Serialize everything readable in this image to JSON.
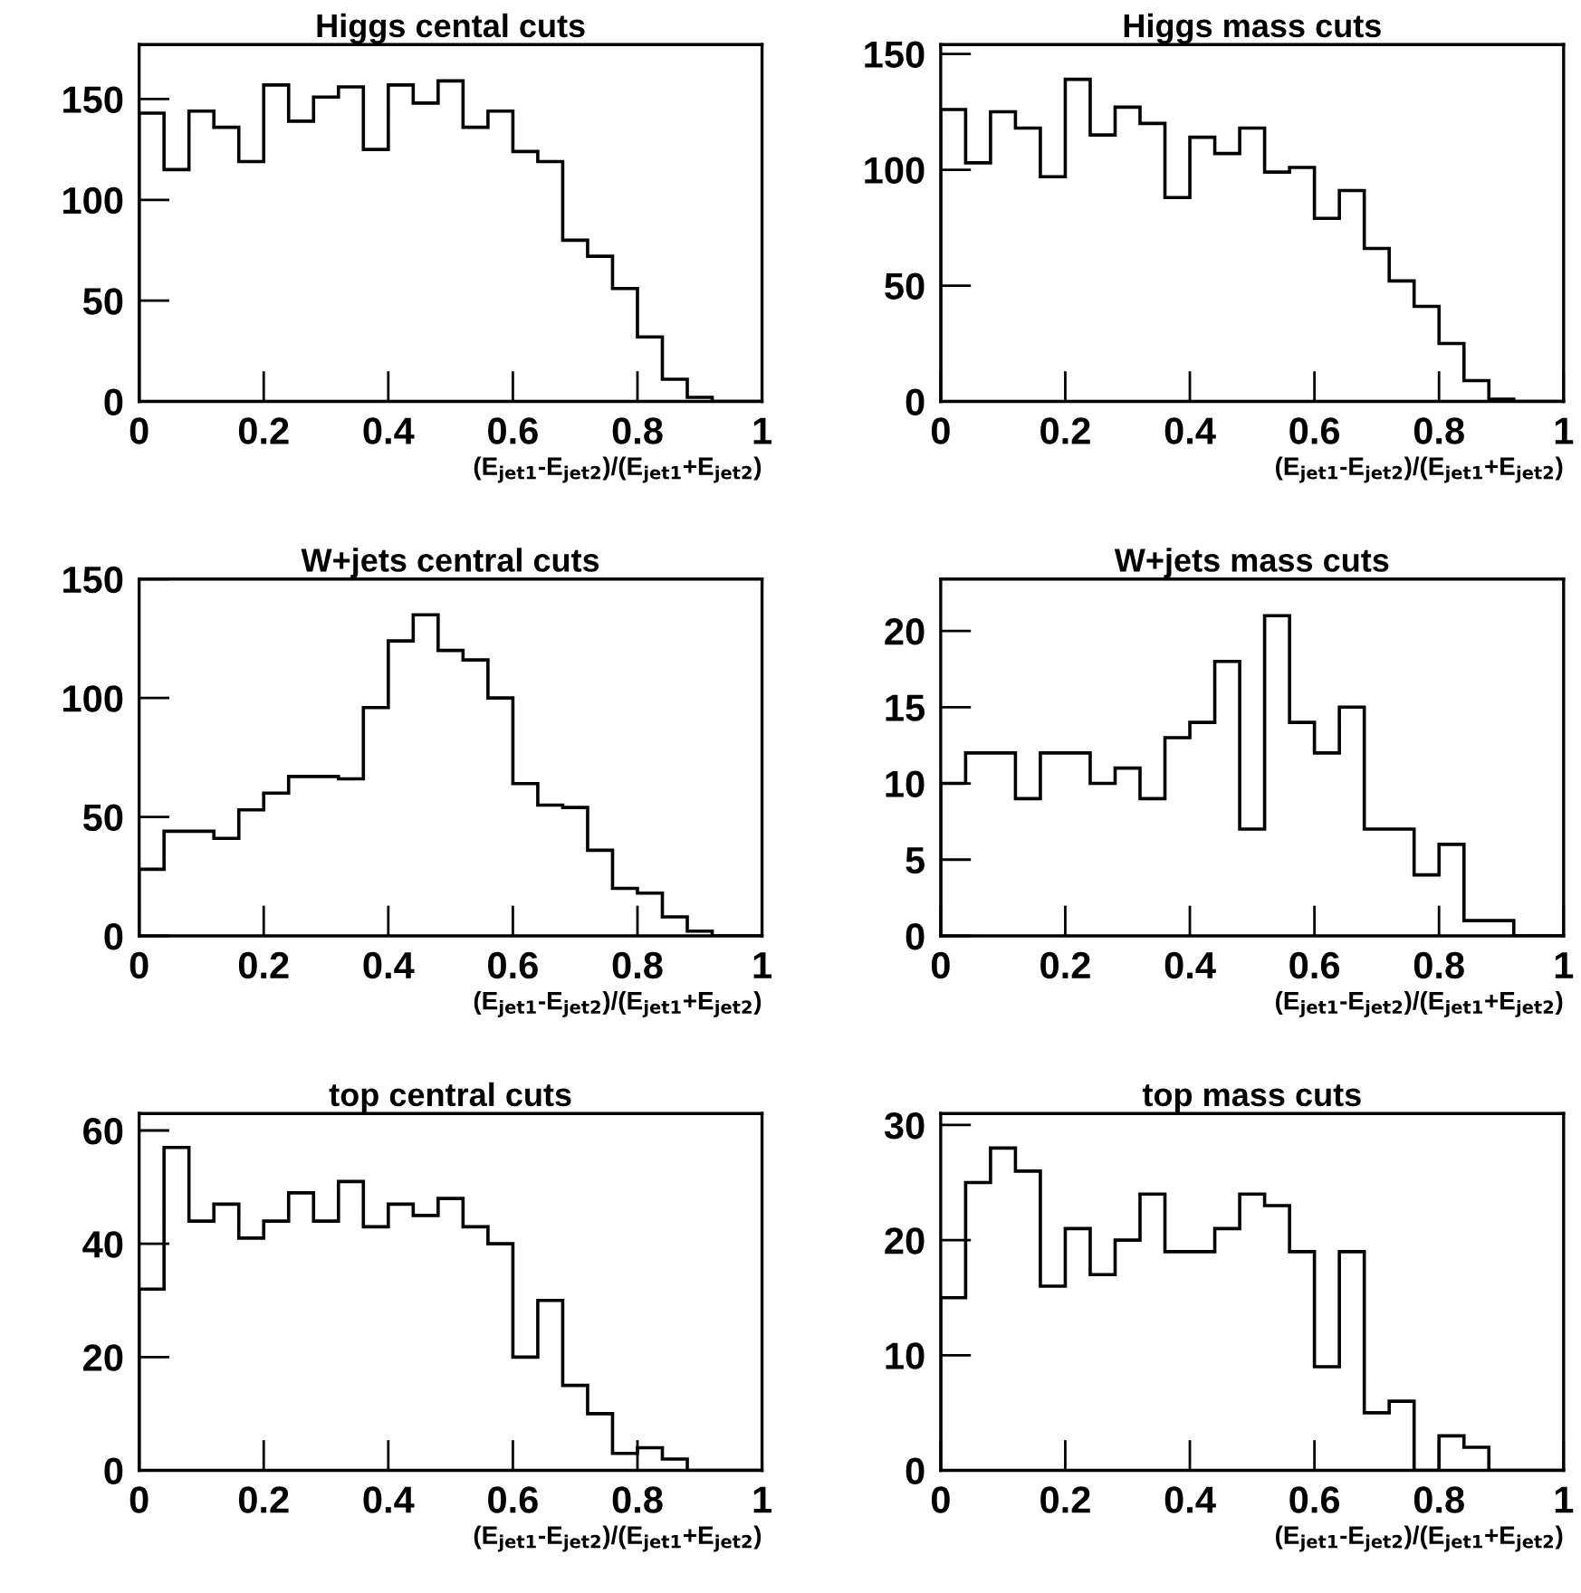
{
  "chart_data": [
    {
      "type": "histogram",
      "title": "Higgs cental cuts",
      "xlabel": "(E$_{jet1}$-E$_{jet2}$)/(E$_{jet1}$+E$_{jet2}$)",
      "color": "#000000",
      "bins": [
        0,
        0.04,
        0.08,
        0.12,
        0.16,
        0.2,
        0.24,
        0.28,
        0.32,
        0.36,
        0.4,
        0.44,
        0.48,
        0.52,
        0.56,
        0.6,
        0.64,
        0.68,
        0.72,
        0.76,
        0.8,
        0.84,
        0.88,
        0.92,
        0.96,
        1
      ],
      "values": [
        143,
        115,
        144,
        136,
        119,
        157,
        139,
        151,
        156,
        125,
        157,
        148,
        159,
        136,
        144,
        124,
        119,
        80,
        72,
        56,
        32,
        11,
        2,
        0,
        0
      ],
      "xlim": [
        0,
        1
      ],
      "xticks": [
        0,
        0.2,
        0.4,
        0.6,
        0.8,
        1
      ],
      "ylim": [
        0,
        177
      ],
      "yticks": [
        0,
        50,
        100,
        150
      ],
      "grid": false,
      "legend": false
    },
    {
      "type": "histogram",
      "title": "Higgs mass cuts",
      "xlabel": "(E$_{jet1}$-E$_{jet2}$)/(E$_{jet1}$+E$_{jet2}$)",
      "color": "#000000",
      "bins": [
        0,
        0.04,
        0.08,
        0.12,
        0.16,
        0.2,
        0.24,
        0.28,
        0.32,
        0.36,
        0.4,
        0.44,
        0.48,
        0.52,
        0.56,
        0.6,
        0.64,
        0.68,
        0.72,
        0.76,
        0.8,
        0.84,
        0.88,
        0.92,
        0.96,
        1
      ],
      "values": [
        126,
        103,
        125,
        118,
        97,
        139,
        115,
        127,
        120,
        88,
        114,
        107,
        118,
        99,
        101,
        79,
        91,
        66,
        52,
        41,
        25,
        9,
        1,
        0,
        0
      ],
      "xlim": [
        0,
        1
      ],
      "xticks": [
        0,
        0.2,
        0.4,
        0.6,
        0.8,
        1
      ],
      "ylim": [
        0,
        154
      ],
      "yticks": [
        0,
        50,
        100,
        150
      ],
      "grid": false,
      "legend": false
    },
    {
      "type": "histogram",
      "title": "W+jets central cuts",
      "xlabel": "(E$_{jet1}$-E$_{jet2}$)/(E$_{jet1}$+E$_{jet2}$)",
      "color": "#000000",
      "bins": [
        0,
        0.04,
        0.08,
        0.12,
        0.16,
        0.2,
        0.24,
        0.28,
        0.32,
        0.36,
        0.4,
        0.44,
        0.48,
        0.52,
        0.56,
        0.6,
        0.64,
        0.68,
        0.72,
        0.76,
        0.8,
        0.84,
        0.88,
        0.92,
        0.96,
        1
      ],
      "values": [
        28,
        44,
        44,
        41,
        53,
        60,
        67,
        67,
        66,
        96,
        124,
        135,
        120,
        116,
        100,
        64,
        55,
        54,
        36,
        20,
        18,
        8,
        2,
        0,
        0
      ],
      "xlim": [
        0,
        1
      ],
      "xticks": [
        0,
        0.2,
        0.4,
        0.6,
        0.8,
        1
      ],
      "ylim": [
        0,
        150
      ],
      "yticks": [
        0,
        50,
        100,
        150
      ],
      "grid": false,
      "legend": false
    },
    {
      "type": "histogram",
      "title": "W+jets mass cuts",
      "xlabel": "(E$_{jet1}$-E$_{jet2}$)/(E$_{jet1}$+E$_{jet2}$)",
      "color": "#000000",
      "bins": [
        0,
        0.04,
        0.08,
        0.12,
        0.16,
        0.2,
        0.24,
        0.28,
        0.32,
        0.36,
        0.4,
        0.44,
        0.48,
        0.52,
        0.56,
        0.6,
        0.64,
        0.68,
        0.72,
        0.76,
        0.8,
        0.84,
        0.88,
        0.92,
        0.96,
        1
      ],
      "values": [
        10,
        12,
        12,
        9,
        12,
        12,
        10,
        11,
        9,
        13,
        14,
        18,
        7,
        21,
        14,
        12,
        15,
        7,
        7,
        4,
        6,
        1,
        1,
        0,
        0
      ],
      "xlim": [
        0,
        1
      ],
      "xticks": [
        0,
        0.2,
        0.4,
        0.6,
        0.8,
        1
      ],
      "ylim": [
        0,
        23.4
      ],
      "yticks": [
        0,
        5,
        10,
        15,
        20
      ],
      "grid": false,
      "legend": false
    },
    {
      "type": "histogram",
      "title": "top central cuts",
      "xlabel": "(E$_{jet1}$-E$_{jet2}$)/(E$_{jet1}$+E$_{jet2}$)",
      "color": "#000000",
      "bins": [
        0,
        0.04,
        0.08,
        0.12,
        0.16,
        0.2,
        0.24,
        0.28,
        0.32,
        0.36,
        0.4,
        0.44,
        0.48,
        0.52,
        0.56,
        0.6,
        0.64,
        0.68,
        0.72,
        0.76,
        0.8,
        0.84,
        0.88,
        0.92,
        0.96,
        1
      ],
      "values": [
        32,
        57,
        44,
        47,
        41,
        44,
        49,
        44,
        51,
        43,
        47,
        45,
        48,
        43,
        40,
        20,
        30,
        15,
        10,
        3,
        4,
        2,
        0,
        0,
        0
      ],
      "xlim": [
        0,
        1
      ],
      "xticks": [
        0,
        0.2,
        0.4,
        0.6,
        0.8,
        1
      ],
      "ylim": [
        0,
        63
      ],
      "yticks": [
        0,
        20,
        40,
        60
      ],
      "grid": false,
      "legend": false
    },
    {
      "type": "histogram",
      "title": "top mass cuts",
      "xlabel": "(E$_{jet1}$-E$_{jet2}$)/(E$_{jet1}$+E$_{jet2}$)",
      "color": "#000000",
      "bins": [
        0,
        0.04,
        0.08,
        0.12,
        0.16,
        0.2,
        0.24,
        0.28,
        0.32,
        0.36,
        0.4,
        0.44,
        0.48,
        0.52,
        0.56,
        0.6,
        0.64,
        0.68,
        0.72,
        0.76,
        0.8,
        0.84,
        0.88,
        0.92,
        0.96,
        1
      ],
      "values": [
        15,
        25,
        28,
        26,
        16,
        21,
        17,
        20,
        24,
        19,
        19,
        21,
        24,
        23,
        19,
        9,
        19,
        5,
        6,
        0,
        3,
        2,
        0,
        0,
        0
      ],
      "xlim": [
        0,
        1
      ],
      "xticks": [
        0,
        0.2,
        0.4,
        0.6,
        0.8,
        1
      ],
      "ylim": [
        0,
        31
      ],
      "yticks": [
        0,
        10,
        20,
        30
      ],
      "grid": false,
      "legend": false
    }
  ]
}
